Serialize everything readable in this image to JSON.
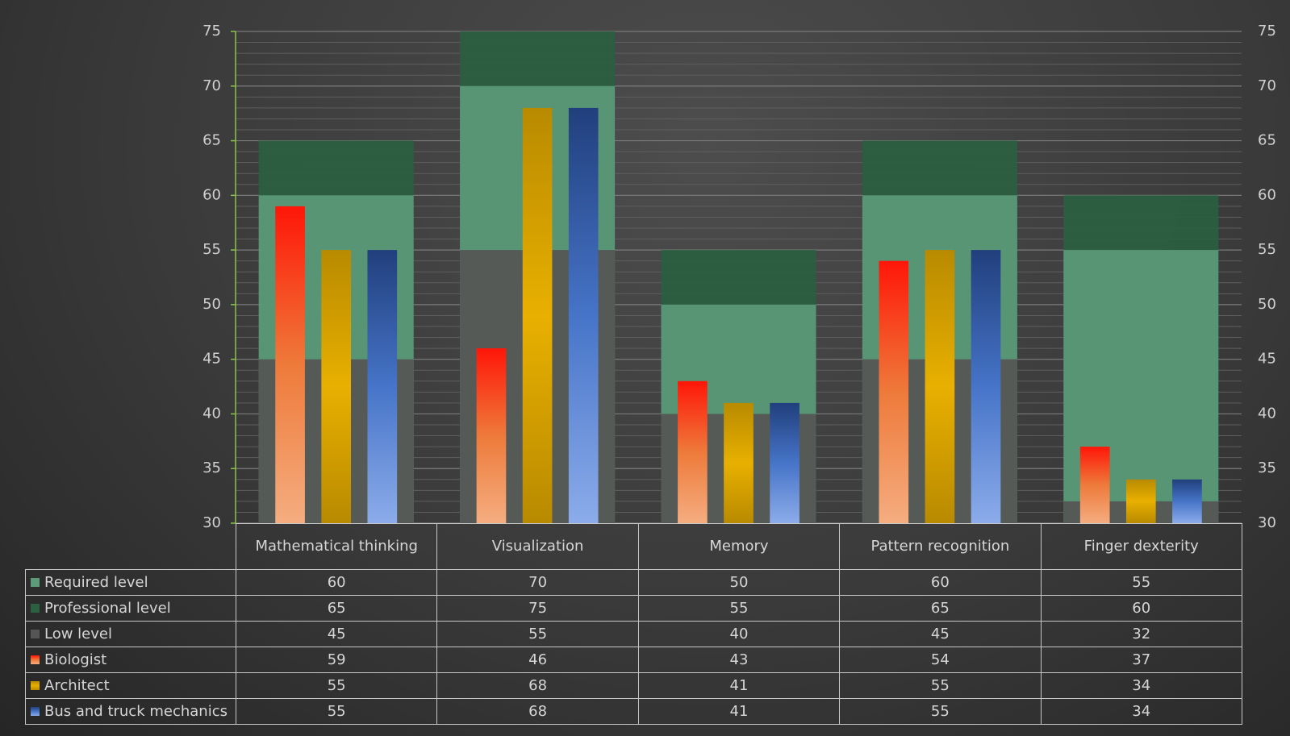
{
  "chart_data": {
    "type": "bar",
    "categories": [
      "Mathematical thinking",
      "Visualization",
      "Memory",
      "Pattern recognition",
      "Finger dexterity"
    ],
    "series": [
      {
        "name": "Professional level",
        "color": "#2b6040",
        "role": "band",
        "values": [
          65,
          75,
          55,
          65,
          60
        ]
      },
      {
        "name": "Required level",
        "color": "#5c9a7a",
        "role": "band",
        "values": [
          60,
          70,
          50,
          60,
          55
        ]
      },
      {
        "name": "Low level",
        "color": "#555555",
        "role": "band",
        "values": [
          45,
          55,
          40,
          45,
          32
        ]
      },
      {
        "name": "Biologist",
        "color": "#ff2a12",
        "gradient": [
          "#ff1608",
          "#ee7a3a",
          "#f5ad80"
        ],
        "values": [
          59,
          46,
          43,
          54,
          37
        ]
      },
      {
        "name": "Architect",
        "color": "#e0a800",
        "gradient": [
          "#b88a00",
          "#e8b000",
          "#b88a00"
        ],
        "values": [
          55,
          68,
          41,
          55,
          34
        ]
      },
      {
        "name": "Bus and truck mechanics",
        "color": "#3f6cc0",
        "gradient": [
          "#213f7c",
          "#4674c8",
          "#8cacea"
        ],
        "values": [
          55,
          68,
          41,
          55,
          34
        ]
      }
    ],
    "table_order": [
      1,
      0,
      2,
      3,
      4,
      5
    ],
    "ylim": [
      30,
      75
    ],
    "yticks": [
      30,
      35,
      40,
      45,
      50,
      55,
      60,
      65,
      70,
      75
    ],
    "y2lim": [
      30,
      75
    ],
    "y2ticks": [
      30,
      35,
      40,
      45,
      50,
      55,
      60,
      65,
      70,
      75
    ],
    "grid": true,
    "minor_grid": true,
    "data_table": true
  }
}
